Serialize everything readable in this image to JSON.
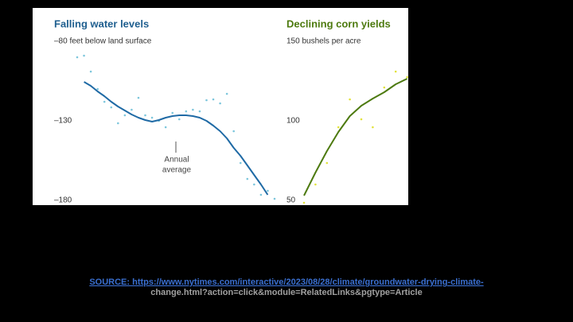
{
  "chart_data": [
    {
      "type": "line",
      "title": "Falling water levels",
      "subtitle": "–80 feet below land surface",
      "annotation": [
        "Annual",
        "average"
      ],
      "categories": [
        null,
        null,
        null,
        null,
        null,
        null,
        null,
        null,
        null,
        null,
        null,
        null,
        null,
        null,
        null,
        null,
        null,
        null,
        null,
        null,
        null,
        null,
        null,
        null,
        null,
        null,
        null,
        null,
        null,
        null
      ],
      "series": [
        {
          "kind": "dots",
          "color": "#7cc6dc",
          "values": [
            -90,
            -89,
            -99,
            -110,
            -118,
            -121.5,
            -131.5,
            -126.5,
            -123,
            -115.5,
            -126.5,
            -128,
            -130,
            -134,
            -125,
            -129,
            -124,
            -123,
            -124,
            -117,
            -116.5,
            -119,
            -113,
            -136.5,
            -156.5,
            -166.5,
            -170,
            -176.5,
            -174,
            -179
          ]
        },
        {
          "kind": "line",
          "color": "#1f6aa5",
          "values": [
            null,
            -105.5,
            -108,
            -111.5,
            -114.5,
            -118,
            -121,
            -123.5,
            -126,
            -128,
            -129.5,
            -130.5,
            -129.5,
            -128,
            -127,
            -126.5,
            -126.5,
            -127,
            -128,
            -130,
            -133,
            -136.5,
            -141,
            -147,
            -152,
            -158,
            -164,
            -170,
            -176.5,
            null
          ]
        }
      ],
      "title_color": "#1f5f8f",
      "ylim": [
        -183,
        -59
      ],
      "yticks": [
        {
          "value": -130,
          "label": "–130"
        },
        {
          "value": -180,
          "label": "–180"
        }
      ]
    },
    {
      "type": "line",
      "title": "Declining corn yields",
      "subtitle": "150 bushels per acre",
      "categories": [
        null,
        null,
        null,
        null,
        null,
        null,
        null,
        null,
        null,
        null
      ],
      "series": [
        {
          "kind": "dots",
          "color": "#e2e23a",
          "values": [
            48.5,
            60,
            73.5,
            96,
            113.5,
            101,
            96,
            121,
            131,
            127.5
          ]
        },
        {
          "kind": "line",
          "color": "#4d7a0f",
          "values": [
            53,
            67.5,
            81,
            93,
            103,
            109.5,
            114,
            118,
            123,
            126.5
          ]
        }
      ],
      "title_color": "#4d7a0f",
      "ylim": [
        47,
        171
      ],
      "yticks": [
        100,
        50
      ]
    }
  ],
  "source": {
    "line1": "SOURCE:  https://www.nytimes.com/interactive/2023/08/28/climate/groundwater-drying-climate-",
    "line2": "change.html?action=click&module=RelatedLinks&pgtype=Article"
  }
}
